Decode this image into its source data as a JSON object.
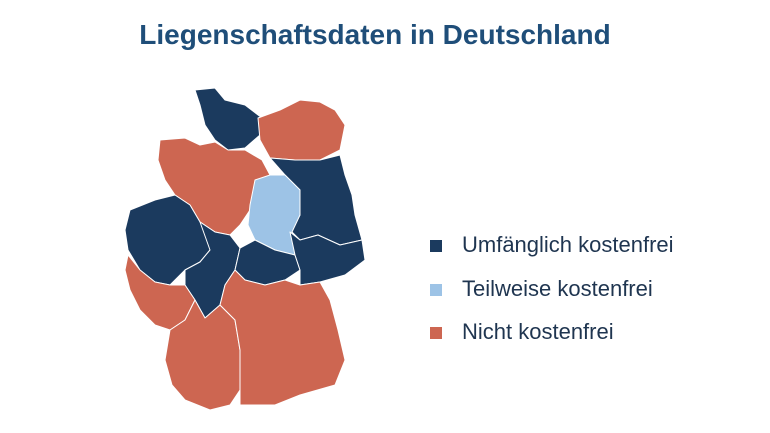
{
  "title": "Liegenschaftsdaten in Deutschland",
  "legend": [
    {
      "label": "Umfänglich kostenfrei",
      "color": "#1b3a5e"
    },
    {
      "label": "Teilweise kostenfrei",
      "color": "#9dc3e6"
    },
    {
      "label": "Nicht kostenfrei",
      "color": "#cd6651"
    }
  ]
}
